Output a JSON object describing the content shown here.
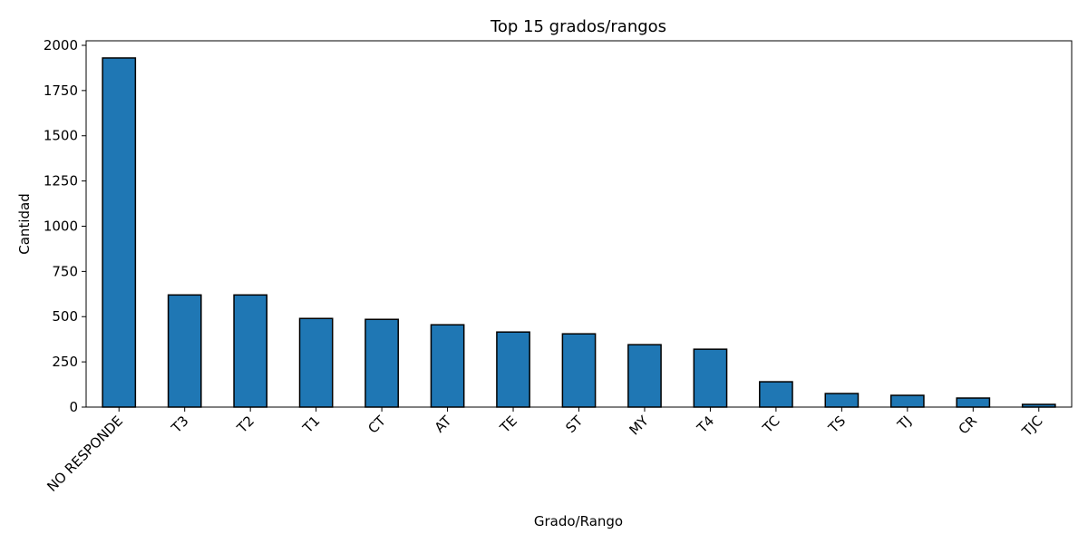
{
  "chart_data": {
    "type": "bar",
    "title": "Top 15 grados/rangos",
    "xlabel": "Grado/Rango",
    "ylabel": "Cantidad",
    "categories": [
      "NO RESPONDE",
      "T3",
      "T2",
      "T1",
      "CT",
      "AT",
      "TE",
      "ST",
      "MY",
      "T4",
      "TC",
      "TS",
      "TJ",
      "CR",
      "TJC"
    ],
    "values": [
      1930,
      620,
      620,
      490,
      485,
      455,
      415,
      405,
      345,
      320,
      140,
      75,
      65,
      50,
      15
    ],
    "ylim": [
      0,
      2025
    ],
    "yticks": [
      0,
      250,
      500,
      750,
      1000,
      1250,
      1500,
      1750,
      2000
    ],
    "grid": false,
    "bar_color": "#1f77b4",
    "edge_color": "#000000"
  }
}
